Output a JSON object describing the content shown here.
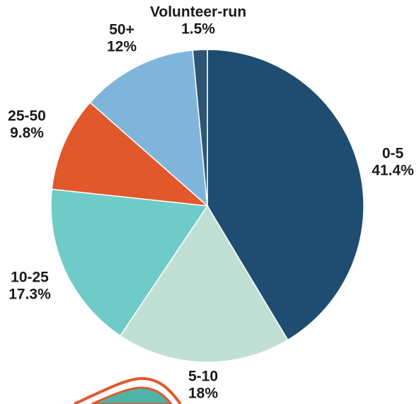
{
  "chart_data": {
    "type": "pie",
    "categories": [
      "0-5",
      "5-10",
      "10-25",
      "25-50",
      "50+",
      "Volunteer-run"
    ],
    "values": [
      41.4,
      18,
      17.3,
      9.8,
      12,
      1.5
    ],
    "value_labels": [
      "41.4%",
      "18%",
      "17.3%",
      "9.8%",
      "12%",
      "1.5%"
    ],
    "colors": [
      "#1f4d71",
      "#c0e0d5",
      "#6ecbc8",
      "#e0582b",
      "#80b5db",
      "#2e5573"
    ]
  }
}
